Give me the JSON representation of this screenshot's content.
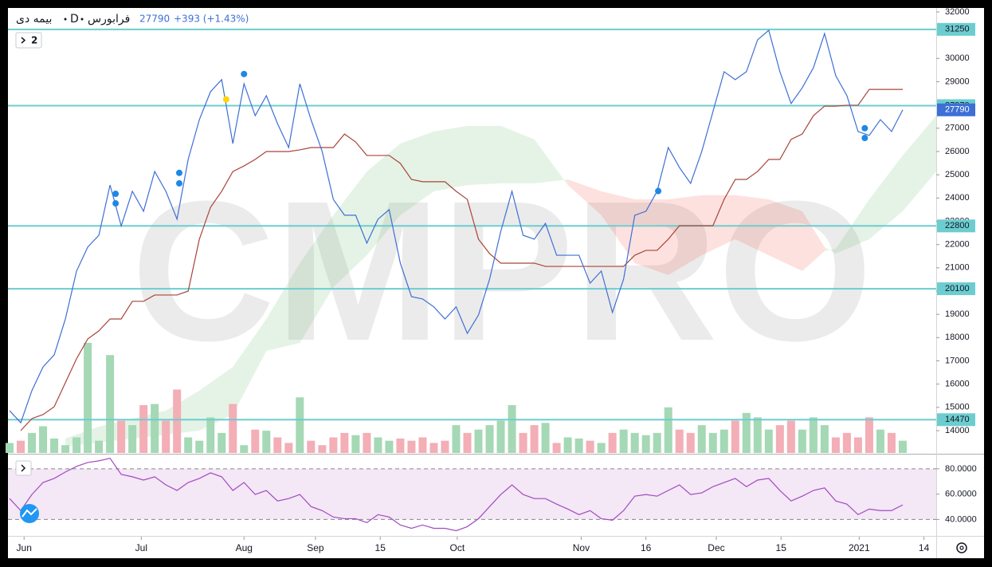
{
  "header": {
    "symbol": "بیمه دی",
    "interval": "D",
    "exchange": "فرابورس",
    "price": 27790,
    "change": "+393 (+1.43%)",
    "indicator_count": 2,
    "watermark": "CMPRO"
  },
  "chart_data": [
    {
      "type": "line",
      "x": [
        0,
        1,
        2,
        3,
        4,
        5,
        6,
        7,
        8,
        9,
        10,
        11,
        12,
        13,
        14,
        15,
        16,
        17,
        18,
        19,
        20,
        21,
        22,
        23,
        24,
        25,
        26,
        27,
        28,
        29,
        30,
        31,
        32,
        33,
        34,
        35,
        36,
        37,
        38,
        39,
        40,
        41,
        42,
        43,
        44,
        45,
        46,
        47,
        48,
        49,
        50,
        51,
        52,
        53,
        54,
        55,
        56,
        57,
        58,
        59,
        60,
        61,
        62,
        63,
        64,
        65,
        66,
        67,
        68,
        69,
        70,
        71,
        72,
        73,
        74,
        75,
        76,
        77,
        78,
        79,
        80
      ],
      "series": [
        {
          "color": "#3d6fd6",
          "values": [
            14860,
            14340,
            15720,
            16740,
            17260,
            18800,
            20860,
            21890,
            22400,
            24560,
            22800,
            24290,
            23430,
            25140,
            24290,
            23090,
            25660,
            27370,
            28570,
            29090,
            26340,
            28910,
            27540,
            28400,
            27200,
            26170,
            28910,
            27370,
            26000,
            23940,
            23260,
            23260,
            22060,
            23090,
            23500,
            21200,
            19760,
            19660,
            19320,
            18800,
            19320,
            18180,
            18970,
            20520,
            22570,
            24290,
            22400,
            22230,
            22910,
            21540,
            21540,
            21540,
            20340,
            20860,
            19080,
            20520,
            23260,
            23430,
            24290,
            26170,
            25310,
            24630,
            26000,
            27710,
            29430,
            29090,
            29430,
            30800,
            31210,
            29430,
            28060,
            28740,
            29600,
            31070,
            29260,
            28400,
            26860,
            26690,
            27370,
            26860,
            27790
          ]
        },
        {
          "color": "#a8453a",
          "values": [
            null,
            14000,
            14520,
            14690,
            15030,
            16060,
            17090,
            17940,
            18290,
            18800,
            18800,
            19560,
            19560,
            19830,
            19830,
            19830,
            20000,
            22230,
            23600,
            24290,
            25140,
            25380,
            25660,
            26000,
            26000,
            26000,
            26070,
            26170,
            26170,
            26170,
            26750,
            26410,
            25830,
            25830,
            25830,
            25490,
            24800,
            24700,
            24700,
            24700,
            24290,
            23940,
            22230,
            21610,
            21200,
            21200,
            21200,
            21200,
            21060,
            21060,
            21060,
            21060,
            21060,
            21060,
            21060,
            21060,
            21540,
            21750,
            21750,
            22230,
            22810,
            22810,
            22810,
            22810,
            23940,
            24800,
            24800,
            25140,
            25660,
            25660,
            26520,
            26750,
            27540,
            27950,
            27950,
            27990,
            27990,
            28670,
            28670,
            28670,
            28670
          ]
        }
      ],
      "cloud": {
        "x": [
          5,
          8,
          11,
          14,
          17,
          20,
          23,
          26,
          29,
          32,
          35,
          38,
          41,
          44,
          47,
          50,
          53,
          56,
          59,
          62,
          65,
          68,
          71,
          73,
          74,
          77,
          80,
          83
        ],
        "span_a": [
          13660,
          14170,
          14520,
          14860,
          15720,
          16740,
          18800,
          21200,
          23260,
          25140,
          26340,
          26860,
          27100,
          27100,
          26520,
          24560,
          23260,
          21200,
          20690,
          21540,
          22230,
          21540,
          20860,
          21720,
          21820,
          23940,
          25830,
          27540
        ],
        "span_b": [
          13320,
          13490,
          13660,
          13830,
          14000,
          14690,
          17430,
          17770,
          20170,
          21540,
          23260,
          24290,
          24560,
          24630,
          24630,
          24800,
          24290,
          23940,
          23940,
          24120,
          24120,
          23940,
          23430,
          21890,
          21610,
          22230,
          23430,
          25140
        ],
        "colors": [
          "#4caf5026",
          "#f4433629"
        ]
      },
      "volume": {
        "values": [
          9,
          11,
          18,
          24,
          13,
          7,
          14,
          99,
          11,
          88,
          29,
          25,
          43,
          44,
          29,
          57,
          14,
          11,
          32,
          18,
          44,
          7,
          21,
          20,
          14,
          9,
          50,
          11,
          7,
          14,
          18,
          16,
          18,
          14,
          11,
          13,
          11,
          14,
          9,
          11,
          25,
          18,
          21,
          25,
          29,
          43,
          18,
          25,
          27,
          9,
          14,
          13,
          11,
          9,
          18,
          21,
          18,
          16,
          18,
          41,
          21,
          18,
          25,
          18,
          21,
          29,
          36,
          32,
          21,
          25,
          29,
          21,
          32,
          25,
          14,
          18,
          14,
          32,
          21,
          18,
          11
        ],
        "ylim": [
          0,
          400
        ],
        "up_color": "#a5d8b5",
        "down_color": "#f3aeb6"
      },
      "signals": [
        {
          "color": "#1e88e5",
          "x": [
            9.5,
            9.5,
            15.2,
            15.2,
            21,
            58.1,
            76.6,
            76.6
          ],
          "y": [
            24180,
            23770,
            25080,
            24630,
            29330,
            24300,
            27000,
            26580
          ]
        },
        {
          "color": "#ffd600",
          "x": [
            19.4
          ],
          "y": [
            28240
          ]
        }
      ],
      "levels": [
        31250,
        27970,
        22800,
        20100,
        14470
      ],
      "level_color": "#6ccdd0",
      "last_price_color": "#3d6fd6",
      "xlim": [
        0,
        83
      ],
      "ylim": [
        13040,
        32170
      ],
      "yticks": [
        14000,
        15000,
        16000,
        17000,
        18000,
        19000,
        20000,
        21000,
        22000,
        23000,
        24000,
        25000,
        26000,
        27000,
        29000,
        30000,
        32000
      ],
      "xticks": [
        {
          "value": 1.3,
          "label": "Jun"
        },
        {
          "value": 11.8,
          "label": "Jul"
        },
        {
          "value": 21,
          "label": "Aug"
        },
        {
          "value": 27.4,
          "label": "Sep"
        },
        {
          "value": 33.2,
          "label": "15"
        },
        {
          "value": 40.1,
          "label": "Oct"
        },
        {
          "value": 51.2,
          "label": "Nov"
        },
        {
          "value": 57,
          "label": "16"
        },
        {
          "value": 63.3,
          "label": "Dec"
        },
        {
          "value": 69.1,
          "label": "15"
        },
        {
          "value": 76.1,
          "label": "2021"
        },
        {
          "value": 81.9,
          "label": "14"
        }
      ]
    },
    {
      "type": "line",
      "x": [
        0,
        1,
        2,
        3,
        4,
        5,
        6,
        7,
        8,
        9,
        10,
        11,
        12,
        13,
        14,
        15,
        16,
        17,
        18,
        19,
        20,
        21,
        22,
        23,
        24,
        25,
        26,
        27,
        28,
        29,
        30,
        31,
        32,
        33,
        34,
        35,
        36,
        37,
        38,
        39,
        40,
        41,
        42,
        43,
        44,
        45,
        46,
        47,
        48,
        49,
        50,
        51,
        52,
        53,
        54,
        55,
        56,
        57,
        58,
        59,
        60,
        61,
        62,
        63,
        64,
        65,
        66,
        67,
        68,
        69,
        70,
        71,
        72,
        73,
        74,
        75,
        76,
        77,
        78,
        79,
        80
      ],
      "series": [
        {
          "color": "#a24bc0",
          "values": [
            56.5,
            47,
            59.7,
            69.2,
            72.4,
            77.5,
            81.9,
            85,
            86.3,
            88.3,
            75.6,
            73.7,
            71.1,
            73.7,
            67.3,
            62.9,
            69.2,
            72.4,
            76.8,
            73.7,
            62.9,
            69.2,
            59.7,
            62.9,
            54.6,
            56.5,
            59.7,
            50.2,
            47,
            41.9,
            40.6,
            40.6,
            37.5,
            43.8,
            41.9,
            35.6,
            33,
            35.6,
            33,
            33,
            31.1,
            34.3,
            40.6,
            50.2,
            59.7,
            67.3,
            59.7,
            56.5,
            56.5,
            52.1,
            48.2,
            43.8,
            47,
            40.6,
            39.4,
            47,
            58.4,
            59.7,
            58.4,
            62.9,
            67.3,
            59.7,
            61,
            65.9,
            69.2,
            72.4,
            65.9,
            71.1,
            72.4,
            62.9,
            54.6,
            58.4,
            62.9,
            64.9,
            54.6,
            52.1,
            43.8,
            48.2,
            47,
            47,
            51.5
          ]
        }
      ],
      "band": [
        40,
        80
      ],
      "band_color": "#9c27b01c",
      "xlim": [
        0,
        83
      ],
      "ylim": [
        27,
        90
      ],
      "yticks": [
        {
          "value": 80,
          "label": "80.0000"
        },
        {
          "value": 60,
          "label": "60.0000"
        },
        {
          "value": 40,
          "label": "40.0000"
        }
      ]
    }
  ]
}
